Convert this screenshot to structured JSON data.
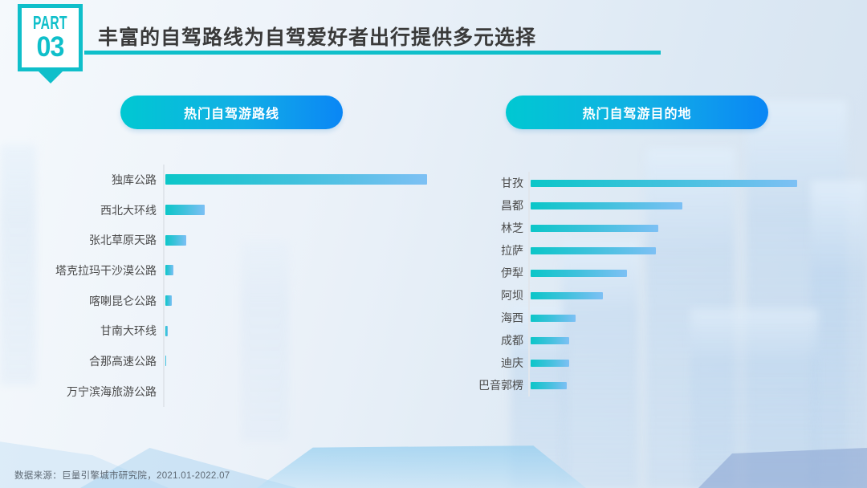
{
  "header": {
    "part_label": "PART",
    "part_number": "03",
    "title": "丰富的自驾路线为自驾爱好者出行提供多元选择"
  },
  "footer": {
    "source": "数据来源：巨量引擎城市研究院，2021.01-2022.07"
  },
  "colors": {
    "accent_teal": "#0fbfca",
    "pill_gradient_start": "#00c8d2",
    "pill_gradient_end": "#0a86f5",
    "bar_gradient_start": "#0bc6c8",
    "bar_gradient_end": "#7dc0f4",
    "label_text": "#4b4b4b"
  },
  "chart_data": [
    {
      "type": "bar",
      "orientation": "horizontal",
      "title": "热门自驾游路线",
      "categories": [
        "独库公路",
        "西北大环线",
        "张北草原天路",
        "塔克拉玛干沙漠公路",
        "喀喇昆仑公路",
        "甘南大环线",
        "合那高速公路",
        "万宁滨海旅游公路"
      ],
      "values": [
        100,
        15,
        8,
        3,
        2.5,
        0.8,
        0.2,
        0.1
      ],
      "value_axis": "unlabeled (relative popularity index, max = 100)",
      "grid": false,
      "legend": false
    },
    {
      "type": "bar",
      "orientation": "horizontal",
      "title": "热门自驾游目的地",
      "categories": [
        "甘孜",
        "昌都",
        "林芝",
        "拉萨",
        "伊犁",
        "阿坝",
        "海西",
        "成都",
        "迪庆",
        "巴音郭楞"
      ],
      "values": [
        100,
        57,
        48,
        47,
        36,
        27,
        17,
        14.5,
        14.5,
        13.5
      ],
      "value_axis": "unlabeled (relative popularity index, max = 100)",
      "grid": false,
      "legend": false
    }
  ]
}
